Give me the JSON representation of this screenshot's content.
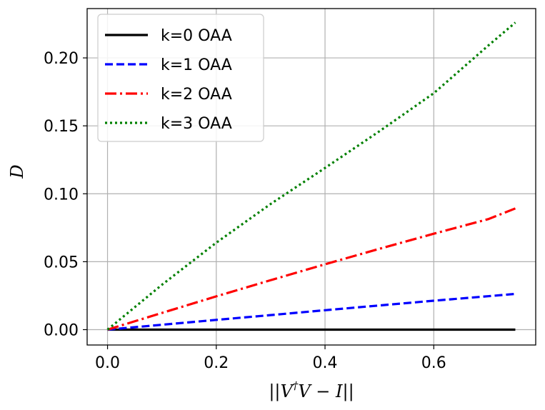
{
  "chart_data": {
    "type": "line",
    "xlabel_parts": [
      "||V",
      "†",
      "V − I||"
    ],
    "ylabel": "D",
    "xlim": [
      -0.0375,
      0.7875
    ],
    "ylim": [
      -0.0113,
      0.2363
    ],
    "x_ticks": [
      0.0,
      0.2,
      0.4,
      0.6
    ],
    "x_tick_labels": [
      "0.0",
      "0.2",
      "0.4",
      "0.6"
    ],
    "y_ticks": [
      0.0,
      0.05,
      0.1,
      0.15,
      0.2
    ],
    "y_tick_labels": [
      "0.00",
      "0.05",
      "0.10",
      "0.15",
      "0.20"
    ],
    "grid": true,
    "legend_position": "top-left",
    "series": [
      {
        "name": "k=0 OAA",
        "color": "#000000",
        "style": "solid",
        "x": [
          0.0,
          0.75
        ],
        "y": [
          0.0,
          0.0
        ]
      },
      {
        "name": "k=1 OAA",
        "color": "#0000ff",
        "style": "dashed",
        "x": [
          0.0,
          0.1,
          0.2,
          0.3,
          0.4,
          0.5,
          0.6,
          0.7,
          0.75
        ],
        "y": [
          0.0,
          0.0036,
          0.0072,
          0.0107,
          0.0143,
          0.0178,
          0.0213,
          0.0246,
          0.0263
        ]
      },
      {
        "name": "k=2 OAA",
        "color": "#ff0000",
        "style": "dashdot",
        "x": [
          0.0,
          0.1,
          0.2,
          0.3,
          0.4,
          0.5,
          0.6,
          0.7,
          0.75
        ],
        "y": [
          0.0,
          0.0123,
          0.0245,
          0.0364,
          0.0481,
          0.0595,
          0.0706,
          0.0813,
          0.0892
        ]
      },
      {
        "name": "k=3 OAA",
        "color": "#008000",
        "style": "dotted",
        "x": [
          0.0,
          0.1,
          0.2,
          0.3,
          0.4,
          0.5,
          0.6,
          0.7,
          0.75
        ],
        "y": [
          0.0,
          0.033,
          0.064,
          0.0925,
          0.119,
          0.146,
          0.174,
          0.209,
          0.226
        ]
      }
    ]
  }
}
